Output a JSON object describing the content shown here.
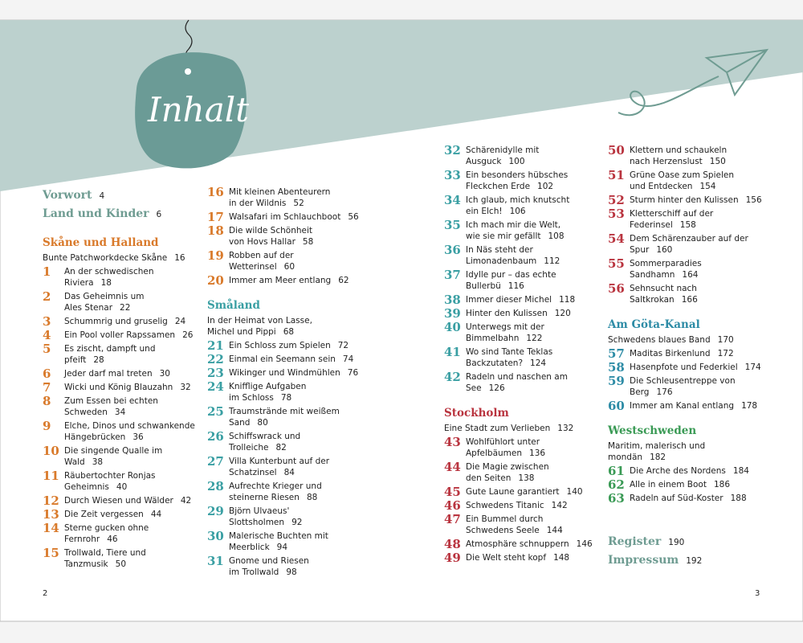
{
  "title": "Inhalt",
  "front_matter": [
    {
      "title": "Vorwort",
      "page": 4
    },
    {
      "title": "Land und Kinder",
      "page": 6
    }
  ],
  "back_matter": [
    {
      "title": "Register",
      "page": 190
    },
    {
      "title": "Impressum",
      "page": 192
    }
  ],
  "chapter_color": "#6f9c92",
  "columns": [
    {
      "groups": [
        {
          "heading": "Skåne und Halland",
          "color": "#d97a2b",
          "intro": {
            "lines": [
              "Bunte Patchworkdecke Skåne"
            ],
            "page": 16
          },
          "entries": [
            {
              "number": 1,
              "lines": [
                "An der schwedischen",
                "Riviera"
              ],
              "page": 18
            },
            {
              "number": 2,
              "lines": [
                "Das Geheimnis um",
                "Ales Stenar"
              ],
              "page": 22
            },
            {
              "number": 3,
              "lines": [
                "Schummrig und gruselig"
              ],
              "page": 24
            },
            {
              "number": 4,
              "lines": [
                "Ein Pool voller Rapssamen"
              ],
              "page": 26
            },
            {
              "number": 5,
              "lines": [
                "Es zischt, dampft und",
                "pfeift"
              ],
              "page": 28
            },
            {
              "number": 6,
              "lines": [
                "Jeder darf mal treten"
              ],
              "page": 30
            },
            {
              "number": 7,
              "lines": [
                "Wicki und König Blauzahn"
              ],
              "page": 32
            },
            {
              "number": 8,
              "lines": [
                "Zum Essen bei echten",
                "Schweden"
              ],
              "page": 34
            },
            {
              "number": 9,
              "lines": [
                "Elche, Dinos und schwankende",
                "Hängebrücken"
              ],
              "page": 36
            },
            {
              "number": 10,
              "lines": [
                "Die singende Qualle im",
                "Wald"
              ],
              "page": 38
            },
            {
              "number": 11,
              "lines": [
                "Räubertochter Ronjas",
                "Geheimnis"
              ],
              "page": 40
            },
            {
              "number": 12,
              "lines": [
                "Durch Wiesen und Wälder"
              ],
              "page": 42
            },
            {
              "number": 13,
              "lines": [
                "Die Zeit vergessen"
              ],
              "page": 44
            },
            {
              "number": 14,
              "lines": [
                "Sterne gucken ohne",
                "Fernrohr"
              ],
              "page": 46
            },
            {
              "number": 15,
              "lines": [
                "Trollwald, Tiere und",
                "Tanzmusik"
              ],
              "page": 50
            }
          ]
        }
      ]
    },
    {
      "groups": [
        {
          "color": "#d97a2b",
          "entries": [
            {
              "number": 16,
              "lines": [
                "Mit kleinen Abenteurern",
                "in der Wildnis"
              ],
              "page": 52
            },
            {
              "number": 17,
              "lines": [
                "Walsafari im Schlauchboot"
              ],
              "page": 56
            },
            {
              "number": 18,
              "lines": [
                "Die wilde Schönheit",
                "von Hovs Hallar"
              ],
              "page": 58
            },
            {
              "number": 19,
              "lines": [
                "Robben auf der",
                "Wetterinsel"
              ],
              "page": 60
            },
            {
              "number": 20,
              "lines": [
                "Immer am Meer entlang"
              ],
              "page": 62
            }
          ]
        },
        {
          "heading": "Småland",
          "color": "#3a9fa3",
          "intro": {
            "lines": [
              "In der Heimat von Lasse,",
              "Michel und Pippi"
            ],
            "page": 68
          },
          "entries": [
            {
              "number": 21,
              "lines": [
                "Ein Schloss zum Spielen"
              ],
              "page": 72
            },
            {
              "number": 22,
              "lines": [
                "Einmal ein Seemann sein"
              ],
              "page": 74
            },
            {
              "number": 23,
              "lines": [
                "Wikinger und Windmühlen"
              ],
              "page": 76
            },
            {
              "number": 24,
              "lines": [
                "Knifflige Aufgaben",
                "im Schloss"
              ],
              "page": 78
            },
            {
              "number": 25,
              "lines": [
                "Traumstrände mit weißem",
                "Sand"
              ],
              "page": 80
            },
            {
              "number": 26,
              "lines": [
                "Schiffswrack und",
                "Trolleiche"
              ],
              "page": 82
            },
            {
              "number": 27,
              "lines": [
                "Villa Kunterbunt auf der",
                "Schatzinsel"
              ],
              "page": 84
            },
            {
              "number": 28,
              "lines": [
                "Aufrechte Krieger und",
                "steinerne Riesen"
              ],
              "page": 88
            },
            {
              "number": 29,
              "lines": [
                "Björn Ulvaeus' Slottsholmen"
              ],
              "page": 92
            },
            {
              "number": 30,
              "lines": [
                "Malerische Buchten mit",
                "Meerblick"
              ],
              "page": 94
            },
            {
              "number": 31,
              "lines": [
                "Gnome und Riesen",
                "im Trollwald"
              ],
              "page": 98
            }
          ]
        }
      ]
    },
    {
      "groups": [
        {
          "color": "#3a9fa3",
          "entries": [
            {
              "number": 32,
              "lines": [
                "Schärenidylle mit",
                "Ausguck"
              ],
              "page": 100
            },
            {
              "number": 33,
              "lines": [
                "Ein besonders hübsches",
                "Fleckchen Erde"
              ],
              "page": 102
            },
            {
              "number": 34,
              "lines": [
                "Ich glaub, mich knutscht",
                "ein Elch!"
              ],
              "page": 106
            },
            {
              "number": 35,
              "lines": [
                "Ich mach mir die Welt,",
                "wie sie mir gefällt"
              ],
              "page": 108
            },
            {
              "number": 36,
              "lines": [
                "In Näs steht der",
                "Limonadenbaum"
              ],
              "page": 112
            },
            {
              "number": 37,
              "lines": [
                "Idylle pur – das echte",
                "Bullerbü"
              ],
              "page": 116
            },
            {
              "number": 38,
              "lines": [
                "Immer dieser Michel"
              ],
              "page": 118
            },
            {
              "number": 39,
              "lines": [
                "Hinter den Kulissen"
              ],
              "page": 120
            },
            {
              "number": 40,
              "lines": [
                "Unterwegs mit der",
                "Bimmelbahn"
              ],
              "page": 122
            },
            {
              "number": 41,
              "lines": [
                "Wo sind Tante Teklas",
                "Backzutaten?"
              ],
              "page": 124
            },
            {
              "number": 42,
              "lines": [
                "Radeln und naschen am",
                "See"
              ],
              "page": 126
            }
          ]
        },
        {
          "heading": "Stockholm",
          "color": "#b9343f",
          "intro": {
            "lines": [
              "Eine Stadt zum Verlieben"
            ],
            "page": 132
          },
          "entries": [
            {
              "number": 43,
              "lines": [
                "Wohlfühlort unter",
                "Apfelbäumen"
              ],
              "page": 136
            },
            {
              "number": 44,
              "lines": [
                "Die Magie zwischen",
                "den Seiten"
              ],
              "page": 138
            },
            {
              "number": 45,
              "lines": [
                "Gute Laune garantiert"
              ],
              "page": 140
            },
            {
              "number": 46,
              "lines": [
                "Schwedens Titanic"
              ],
              "page": 142
            },
            {
              "number": 47,
              "lines": [
                "Ein Bummel durch",
                "Schwedens Seele"
              ],
              "page": 144
            },
            {
              "number": 48,
              "lines": [
                "Atmosphäre schnuppern"
              ],
              "page": 146
            },
            {
              "number": 49,
              "lines": [
                "Die Welt steht kopf"
              ],
              "page": 148
            }
          ]
        }
      ]
    },
    {
      "groups": [
        {
          "color": "#b9343f",
          "entries": [
            {
              "number": 50,
              "lines": [
                "Klettern und schaukeln",
                "nach Herzenslust"
              ],
              "page": 150
            },
            {
              "number": 51,
              "lines": [
                "Grüne Oase zum Spielen",
                "und Entdecken"
              ],
              "page": 154
            },
            {
              "number": 52,
              "lines": [
                "Sturm hinter den Kulissen"
              ],
              "page": 156
            },
            {
              "number": 53,
              "lines": [
                "Kletterschiff auf der",
                "Federinsel"
              ],
              "page": 158
            },
            {
              "number": 54,
              "lines": [
                "Dem Schärenzauber auf der",
                "Spur"
              ],
              "page": 160
            },
            {
              "number": 55,
              "lines": [
                "Sommerparadies",
                "Sandhamn"
              ],
              "page": 164
            },
            {
              "number": 56,
              "lines": [
                "Sehnsucht nach",
                "Saltkrokan"
              ],
              "page": 166
            }
          ]
        },
        {
          "heading": "Am Göta-Kanal",
          "color": "#2e8ca6",
          "intro": {
            "lines": [
              "Schwedens blaues Band"
            ],
            "page": 170
          },
          "entries": [
            {
              "number": 57,
              "lines": [
                "Maditas Birkenlund"
              ],
              "page": 172
            },
            {
              "number": 58,
              "lines": [
                "Hasenpfote und Federkiel"
              ],
              "page": 174
            },
            {
              "number": 59,
              "lines": [
                "Die Schleusentreppe von",
                "Berg"
              ],
              "page": 176
            },
            {
              "number": 60,
              "lines": [
                "Immer am Kanal entlang"
              ],
              "page": 178
            }
          ]
        },
        {
          "heading": "Westschweden",
          "color": "#3a9a55",
          "intro": {
            "lines": [
              "Maritim, malerisch und",
              "mondän"
            ],
            "page": 182
          },
          "entries": [
            {
              "number": 61,
              "lines": [
                "Die Arche des Nordens"
              ],
              "page": 184
            },
            {
              "number": 62,
              "lines": [
                "Alle in einem Boot"
              ],
              "page": 186
            },
            {
              "number": 63,
              "lines": [
                "Radeln auf Süd-Koster"
              ],
              "page": 188
            }
          ]
        }
      ]
    }
  ],
  "folios": [
    2,
    3
  ]
}
